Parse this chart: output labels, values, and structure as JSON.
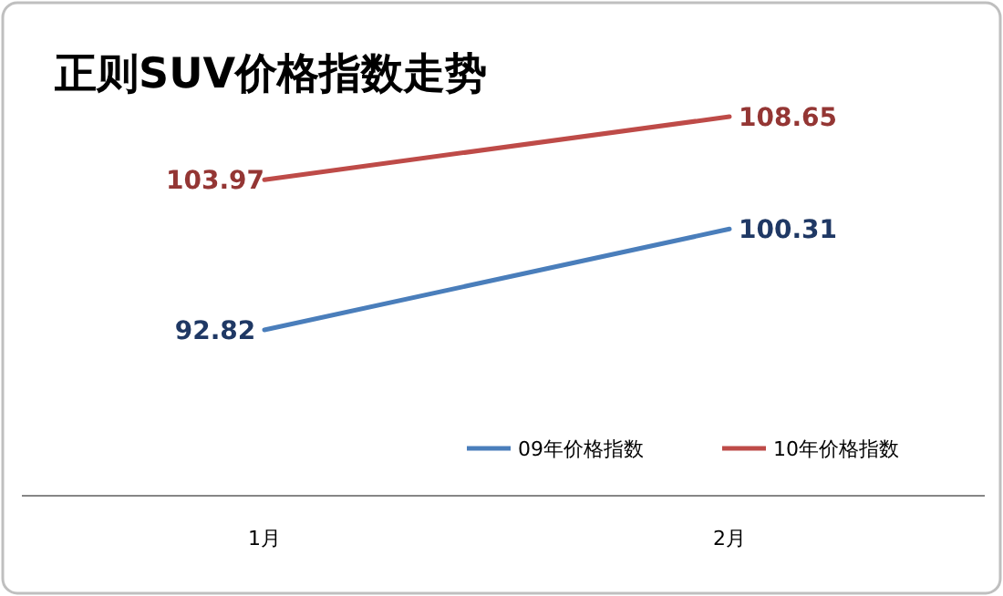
{
  "chart_data": {
    "type": "line",
    "title": "正则SUV价格指数走势",
    "categories": [
      "1月",
      "2月"
    ],
    "series": [
      {
        "name": "09年价格指数",
        "color": "#4a7ebb",
        "values": [
          92.82,
          100.31
        ]
      },
      {
        "name": "10年价格指数",
        "color": "#be4b48",
        "values": [
          103.97,
          108.65
        ]
      }
    ],
    "data_labels": true,
    "legend": "bottom right",
    "grid": false,
    "marker": "none",
    "line_style": "solid"
  }
}
